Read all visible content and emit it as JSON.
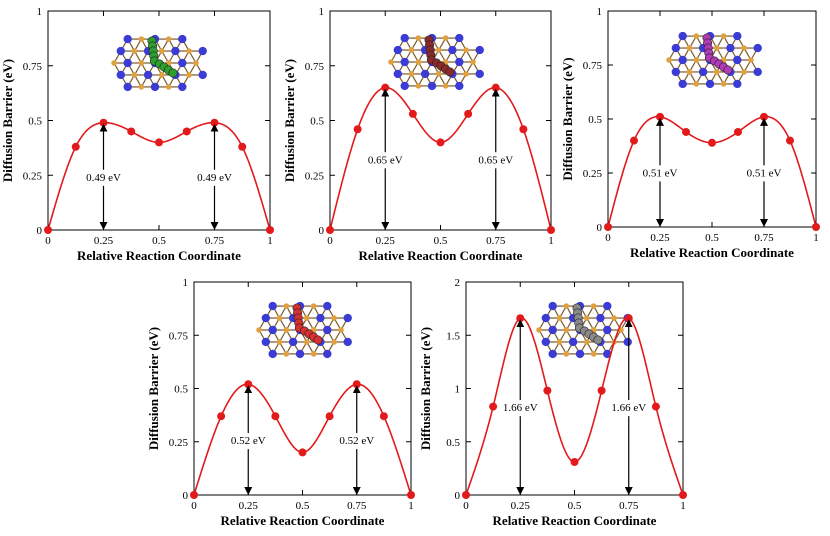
{
  "colors": {
    "curve": "#e31a1c",
    "point": "#e31a1c",
    "nitrogen": "#3b3bd6",
    "carbon": "#e0a040",
    "arrow": "#000000"
  },
  "chart_data": [
    {
      "type": "line",
      "panel": "top-left",
      "xlabel": "Relative Reaction Coordinate",
      "ylabel": "Diffusion Barrier (eV)",
      "xlim": [
        0,
        1
      ],
      "ylim": [
        0,
        1
      ],
      "xticks": [
        "0",
        "0.25",
        "0.5",
        "0.75",
        "1"
      ],
      "yticks": [
        "0",
        "0.25",
        "0.5",
        "0.75",
        "1"
      ],
      "x": [
        0,
        0.125,
        0.25,
        0.375,
        0.5,
        0.625,
        0.75,
        0.875,
        1
      ],
      "y": [
        0,
        0.38,
        0.49,
        0.45,
        0.4,
        0.45,
        0.49,
        0.38,
        0
      ],
      "barrier_labels": [
        "0.49 eV",
        "0.49 eV"
      ],
      "molecule_color": "#2e9e2e"
    },
    {
      "type": "line",
      "panel": "top-middle",
      "xlabel": "Relative Reaction Coordinate",
      "ylabel": "Diffusion Barrier (eV)",
      "xlim": [
        0,
        1
      ],
      "ylim": [
        0,
        1
      ],
      "xticks": [
        "0",
        "0.25",
        "0.5",
        "0.75",
        "1"
      ],
      "yticks": [
        "0",
        "0.25",
        "0.5",
        "0.75",
        "1"
      ],
      "x": [
        0,
        0.125,
        0.25,
        0.375,
        0.5,
        0.625,
        0.75,
        0.875,
        1
      ],
      "y": [
        0,
        0.46,
        0.65,
        0.53,
        0.4,
        0.53,
        0.65,
        0.46,
        0
      ],
      "barrier_labels": [
        "0.65 eV",
        "0.65 eV"
      ],
      "molecule_color": "#8b2a2a"
    },
    {
      "type": "line",
      "panel": "top-right",
      "xlabel": "Relative Reaction Coordinate",
      "ylabel": "Diffusion Barrier (eV)",
      "xlim": [
        0,
        1
      ],
      "ylim": [
        0,
        1
      ],
      "xticks": [
        "0",
        "0.25",
        "0.5",
        "0.75",
        "1"
      ],
      "yticks": [
        "0",
        "0.25",
        "0.5",
        "0.75",
        "1"
      ],
      "x": [
        0,
        0.125,
        0.25,
        0.375,
        0.5,
        0.625,
        0.75,
        0.875,
        1
      ],
      "y": [
        0,
        0.4,
        0.51,
        0.44,
        0.39,
        0.44,
        0.51,
        0.4,
        0
      ],
      "barrier_labels": [
        "0.51 eV",
        "0.51 eV"
      ],
      "molecule_color": "#b03ab8"
    },
    {
      "type": "line",
      "panel": "bottom-left",
      "xlabel": "Relative Reaction Coordinate",
      "ylabel": "Diffusion Barrier (eV)",
      "xlim": [
        0,
        1
      ],
      "ylim": [
        0,
        1
      ],
      "xticks": [
        "0",
        "0.25",
        "0.5",
        "0.75",
        "1"
      ],
      "yticks": [
        "0",
        "0.25",
        "0.5",
        "0.75",
        "1"
      ],
      "x": [
        0,
        0.125,
        0.25,
        0.375,
        0.5,
        0.625,
        0.75,
        0.875,
        1
      ],
      "y": [
        0,
        0.37,
        0.52,
        0.37,
        0.2,
        0.37,
        0.52,
        0.37,
        0
      ],
      "barrier_labels": [
        "0.52 eV",
        "0.52 eV"
      ],
      "molecule_color": "#d63030"
    },
    {
      "type": "line",
      "panel": "bottom-right",
      "xlabel": "Relative Reaction Coordinate",
      "ylabel": "Diffusion Barrier (eV)",
      "xlim": [
        0,
        1
      ],
      "ylim": [
        0,
        2
      ],
      "xticks": [
        "0",
        "0.25",
        "0.5",
        "0.75",
        "1"
      ],
      "yticks": [
        "0",
        "0.5",
        "1",
        "1.5",
        "2"
      ],
      "x": [
        0,
        0.125,
        0.25,
        0.375,
        0.5,
        0.625,
        0.75,
        0.875,
        1
      ],
      "y": [
        0,
        0.83,
        1.66,
        0.98,
        0.31,
        0.98,
        1.66,
        0.83,
        0
      ],
      "barrier_labels": [
        "1.66 eV",
        "1.66 eV"
      ],
      "molecule_color": "#8a8a8a"
    }
  ]
}
